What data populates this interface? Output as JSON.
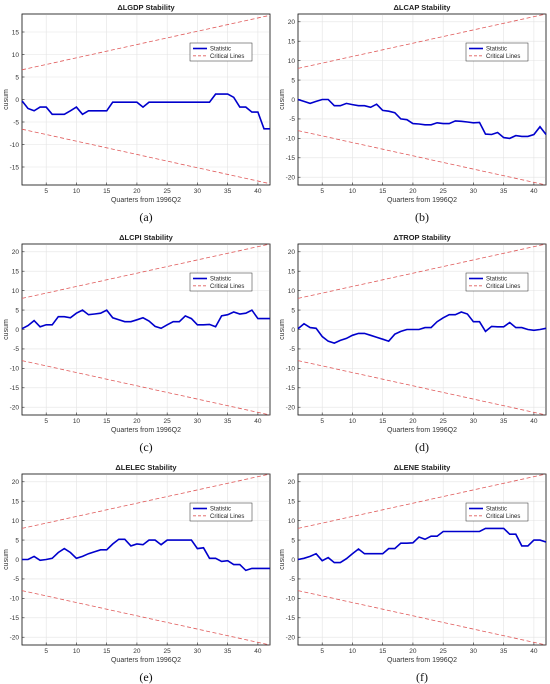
{
  "chart_data": [
    {
      "type": "line",
      "title": "ΔLGDP Stability",
      "xlabel": "Quarters from 1996Q2",
      "ylabel": "cusum",
      "caption": "(a)",
      "xlim": [
        1,
        42
      ],
      "ylim": [
        -19,
        19
      ],
      "xticks": [
        5,
        10,
        15,
        20,
        25,
        30,
        35,
        40
      ],
      "yticks": [
        -15,
        -10,
        -5,
        0,
        5,
        10,
        15
      ],
      "grid": true,
      "legend_position": "upper-right",
      "legend": [
        "Statistic",
        "Critical Lines"
      ],
      "series": [
        {
          "name": "Statistic",
          "color": "#0000cc",
          "style": "solid",
          "x": [
            1,
            2,
            3,
            4,
            5,
            6,
            7,
            8,
            9,
            10,
            11,
            12,
            13,
            14,
            15,
            16,
            17,
            18,
            19,
            20,
            21,
            22,
            23,
            24,
            25,
            26,
            27,
            28,
            29,
            30,
            31,
            32,
            33,
            34,
            35,
            36,
            37,
            38,
            39,
            40,
            41,
            42
          ],
          "y": [
            -0.3,
            -2.0,
            -2.5,
            -1.7,
            -1.7,
            -3.3,
            -3.3,
            -3.3,
            -2.5,
            -1.7,
            -3.3,
            -2.5,
            -2.5,
            -2.5,
            -2.5,
            -0.6,
            -0.6,
            -0.6,
            -0.6,
            -0.6,
            -1.7,
            -0.6,
            -0.6,
            -0.6,
            -0.6,
            -0.6,
            -0.6,
            -0.6,
            -0.6,
            -0.6,
            -0.6,
            -0.6,
            1.2,
            1.2,
            1.2,
            0.5,
            -1.7,
            -1.7,
            -2.8,
            -2.8,
            -6.5,
            -6.5
          ]
        },
        {
          "name": "Critical Lines",
          "color": "#e05a5a",
          "style": "dashed",
          "x": [
            1,
            42
          ],
          "y": [
            6.6,
            18.7
          ]
        },
        {
          "name": "Critical Lines",
          "color": "#e05a5a",
          "style": "dashed",
          "x": [
            1,
            42
          ],
          "y": [
            -6.6,
            -18.7
          ]
        }
      ]
    },
    {
      "type": "line",
      "title": "ΔLCAP Stability",
      "xlabel": "Quarters from 1996Q2",
      "ylabel": "cusum",
      "caption": "(b)",
      "xlim": [
        1,
        42
      ],
      "ylim": [
        -22,
        22
      ],
      "xticks": [
        5,
        10,
        15,
        20,
        25,
        30,
        35,
        40
      ],
      "yticks": [
        -20,
        -15,
        -10,
        -5,
        0,
        5,
        10,
        15,
        20
      ],
      "grid": true,
      "legend_position": "upper-right",
      "legend": [
        "Statistic",
        "Critical Lines"
      ],
      "series": [
        {
          "name": "Statistic",
          "color": "#0000cc",
          "style": "solid",
          "x": [
            1,
            2,
            3,
            4,
            5,
            6,
            7,
            8,
            9,
            10,
            11,
            12,
            13,
            14,
            15,
            16,
            17,
            18,
            19,
            20,
            21,
            22,
            23,
            24,
            25,
            26,
            27,
            28,
            29,
            30,
            31,
            32,
            33,
            34,
            35,
            36,
            37,
            38,
            39,
            40,
            41,
            42
          ],
          "y": [
            0,
            -0.5,
            -1.0,
            -0.5,
            0,
            0,
            -1.6,
            -1.6,
            -1.0,
            -1.3,
            -1.6,
            -1.6,
            -2.0,
            -1.2,
            -2.8,
            -3.0,
            -3.4,
            -5.0,
            -5.2,
            -6.2,
            -6.3,
            -6.5,
            -6.5,
            -6.0,
            -6.2,
            -6.2,
            -5.5,
            -5.6,
            -5.8,
            -6.0,
            -5.9,
            -8.9,
            -9.0,
            -8.5,
            -9.8,
            -10.0,
            -9.3,
            -9.5,
            -9.5,
            -9.0,
            -7.0,
            -9.0
          ]
        },
        {
          "name": "Critical Lines",
          "color": "#e05a5a",
          "style": "dashed",
          "x": [
            1,
            42
          ],
          "y": [
            8.0,
            22.0
          ]
        },
        {
          "name": "Critical Lines",
          "color": "#e05a5a",
          "style": "dashed",
          "x": [
            1,
            42
          ],
          "y": [
            -8.0,
            -22.0
          ]
        }
      ]
    },
    {
      "type": "line",
      "title": "ΔLCPI Stability",
      "xlabel": "Quarters from 1996Q2",
      "ylabel": "cusum",
      "caption": "(c)",
      "xlim": [
        1,
        42
      ],
      "ylim": [
        -22,
        22
      ],
      "xticks": [
        5,
        10,
        15,
        20,
        25,
        30,
        35,
        40
      ],
      "yticks": [
        -20,
        -15,
        -10,
        -5,
        0,
        5,
        10,
        15,
        20
      ],
      "grid": true,
      "legend_position": "upper-right",
      "legend": [
        "Statistic",
        "Critical Lines"
      ],
      "series": [
        {
          "name": "Statistic",
          "color": "#0000cc",
          "style": "solid",
          "x": [
            1,
            2,
            3,
            4,
            5,
            6,
            7,
            8,
            9,
            10,
            11,
            12,
            13,
            14,
            15,
            16,
            17,
            18,
            19,
            20,
            21,
            22,
            23,
            24,
            25,
            26,
            27,
            28,
            29,
            30,
            31,
            32,
            33,
            34,
            35,
            36,
            37,
            38,
            39,
            40,
            41,
            42
          ],
          "y": [
            0.2,
            1.0,
            2.3,
            0.7,
            1.2,
            1.2,
            3.3,
            3.3,
            3.0,
            4.2,
            5.0,
            3.8,
            4.0,
            4.2,
            5.0,
            3.0,
            2.5,
            2.0,
            2.0,
            2.5,
            3.0,
            2.2,
            0.8,
            0.3,
            1.2,
            2.0,
            2.0,
            3.5,
            2.8,
            1.2,
            1.2,
            1.3,
            0.7,
            3.5,
            3.8,
            4.5,
            4.0,
            4.2,
            5.0,
            2.8,
            2.8,
            2.8
          ]
        },
        {
          "name": "Critical Lines",
          "color": "#e05a5a",
          "style": "dashed",
          "x": [
            1,
            42
          ],
          "y": [
            8.0,
            22.0
          ]
        },
        {
          "name": "Critical Lines",
          "color": "#e05a5a",
          "style": "dashed",
          "x": [
            1,
            42
          ],
          "y": [
            -8.0,
            -22.0
          ]
        }
      ]
    },
    {
      "type": "line",
      "title": "ΔTROP Stability",
      "xlabel": "Quarters from 1996Q2",
      "ylabel": "cusum",
      "caption": "(d)",
      "xlim": [
        1,
        42
      ],
      "ylim": [
        -22,
        22
      ],
      "xticks": [
        5,
        10,
        15,
        20,
        25,
        30,
        35,
        40
      ],
      "yticks": [
        -20,
        -15,
        -10,
        -5,
        0,
        5,
        10,
        15,
        20
      ],
      "grid": true,
      "legend_position": "upper-right",
      "legend": [
        "Statistic",
        "Critical Lines"
      ],
      "series": [
        {
          "name": "Statistic",
          "color": "#0000cc",
          "style": "solid",
          "x": [
            1,
            2,
            3,
            4,
            5,
            6,
            7,
            8,
            9,
            10,
            11,
            12,
            13,
            14,
            15,
            16,
            17,
            18,
            19,
            20,
            21,
            22,
            23,
            24,
            25,
            26,
            27,
            28,
            29,
            30,
            31,
            32,
            33,
            34,
            35,
            36,
            37,
            38,
            39,
            40,
            41,
            42
          ],
          "y": [
            0.2,
            1.5,
            0.5,
            0.3,
            -1.8,
            -3.0,
            -3.5,
            -2.8,
            -2.3,
            -1.5,
            -1.0,
            -1.0,
            -1.5,
            -2.0,
            -2.5,
            -3.0,
            -1.2,
            -0.5,
            0,
            0,
            0,
            0.5,
            0.5,
            2.0,
            3.0,
            3.8,
            3.8,
            4.5,
            4.0,
            2.0,
            2.0,
            -0.5,
            0.8,
            0.7,
            0.7,
            1.8,
            0.5,
            0.5,
            0,
            -0.2,
            0,
            0.3
          ]
        },
        {
          "name": "Critical Lines",
          "color": "#e05a5a",
          "style": "dashed",
          "x": [
            1,
            42
          ],
          "y": [
            8.0,
            22.0
          ]
        },
        {
          "name": "Critical Lines",
          "color": "#e05a5a",
          "style": "dashed",
          "x": [
            1,
            42
          ],
          "y": [
            -8.0,
            -22.0
          ]
        }
      ]
    },
    {
      "type": "line",
      "title": "ΔLELEC Stability",
      "xlabel": "Quarters from 1996Q2",
      "ylabel": "cusum",
      "caption": "(e)",
      "xlim": [
        1,
        42
      ],
      "ylim": [
        -22,
        22
      ],
      "xticks": [
        5,
        10,
        15,
        20,
        25,
        30,
        35,
        40
      ],
      "yticks": [
        -20,
        -15,
        -10,
        -5,
        0,
        5,
        10,
        15,
        20
      ],
      "grid": true,
      "legend_position": "upper-right",
      "legend": [
        "Statistic",
        "Critical Lines"
      ],
      "series": [
        {
          "name": "Statistic",
          "color": "#0000cc",
          "style": "solid",
          "x": [
            1,
            2,
            3,
            4,
            5,
            6,
            7,
            8,
            9,
            10,
            11,
            12,
            13,
            14,
            15,
            16,
            17,
            18,
            19,
            20,
            21,
            22,
            23,
            24,
            25,
            26,
            27,
            28,
            29,
            30,
            31,
            32,
            33,
            34,
            35,
            36,
            37,
            38,
            39,
            40,
            41,
            42
          ],
          "y": [
            0,
            0,
            0.8,
            -0.2,
            0,
            0.3,
            1.8,
            2.8,
            1.8,
            0.3,
            0.8,
            1.5,
            2.0,
            2.5,
            2.5,
            4.0,
            5.2,
            5.2,
            3.5,
            4.0,
            3.8,
            5.0,
            5.0,
            3.8,
            5.0,
            5.0,
            5.0,
            5.0,
            5.0,
            2.8,
            3.0,
            0.3,
            0.3,
            -0.5,
            -0.3,
            -1.3,
            -1.3,
            -2.8,
            -2.3,
            -2.3,
            -2.3,
            -2.3
          ]
        },
        {
          "name": "Critical Lines",
          "color": "#e05a5a",
          "style": "dashed",
          "x": [
            1,
            42
          ],
          "y": [
            8.0,
            22.0
          ]
        },
        {
          "name": "Critical Lines",
          "color": "#e05a5a",
          "style": "dashed",
          "x": [
            1,
            42
          ],
          "y": [
            -8.0,
            -22.0
          ]
        }
      ]
    },
    {
      "type": "line",
      "title": "ΔLENE Stability",
      "xlabel": "Quarters from 1996Q2",
      "ylabel": "cusum",
      "caption": "(f)",
      "xlim": [
        1,
        42
      ],
      "ylim": [
        -22,
        22
      ],
      "xticks": [
        5,
        10,
        15,
        20,
        25,
        30,
        35,
        40
      ],
      "yticks": [
        -20,
        -15,
        -10,
        -5,
        0,
        5,
        10,
        15,
        20
      ],
      "grid": true,
      "legend_position": "upper-right",
      "legend": [
        "Statistic",
        "Critical Lines"
      ],
      "series": [
        {
          "name": "Statistic",
          "color": "#0000cc",
          "style": "solid",
          "x": [
            1,
            2,
            3,
            4,
            5,
            6,
            7,
            8,
            9,
            10,
            11,
            12,
            13,
            14,
            15,
            16,
            17,
            18,
            19,
            20,
            21,
            22,
            23,
            24,
            25,
            26,
            27,
            28,
            29,
            30,
            31,
            32,
            33,
            34,
            35,
            36,
            37,
            38,
            39,
            40,
            41,
            42
          ],
          "y": [
            0,
            0.3,
            0.8,
            1.5,
            -0.3,
            0.5,
            -0.8,
            -0.8,
            0.2,
            1.5,
            2.7,
            1.5,
            1.5,
            1.5,
            1.5,
            2.8,
            2.8,
            4.2,
            4.2,
            4.3,
            5.8,
            5.2,
            6.0,
            6.0,
            7.2,
            7.2,
            7.2,
            7.2,
            7.2,
            7.2,
            7.2,
            8.0,
            8.0,
            8.0,
            8.0,
            6.5,
            6.5,
            3.5,
            3.5,
            5.0,
            5.0,
            4.5
          ]
        },
        {
          "name": "Critical Lines",
          "color": "#e05a5a",
          "style": "dashed",
          "x": [
            1,
            42
          ],
          "y": [
            8.0,
            22.0
          ]
        },
        {
          "name": "Critical Lines",
          "color": "#e05a5a",
          "style": "dashed",
          "x": [
            1,
            42
          ],
          "y": [
            -8.0,
            -22.0
          ]
        }
      ]
    }
  ]
}
